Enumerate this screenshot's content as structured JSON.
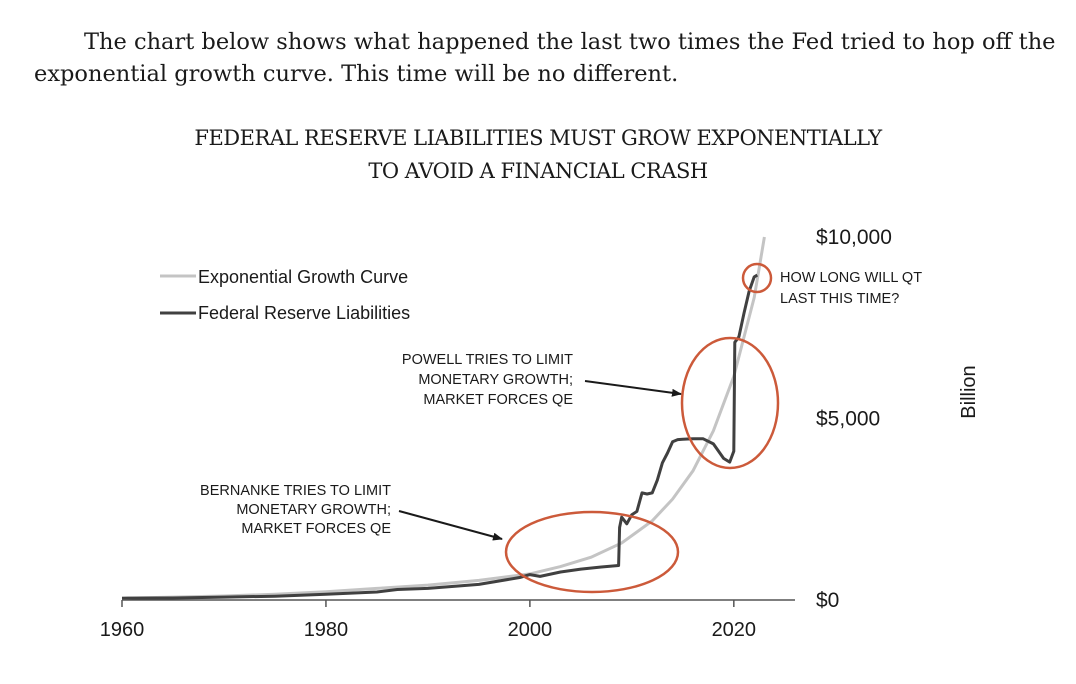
{
  "intro_text": "The chart below shows what happened the last two times the Fed tried to hop off the exponential growth curve. This time will be no different.",
  "chart_data": {
    "type": "line",
    "title_line1": "FEDERAL RESERVE LIABILITIES MUST GROW EXPONENTIALLY",
    "title_line2": "TO AVOID A FINANCIAL CRASH",
    "xlabel": "",
    "ylabel": "Billion",
    "xlim": [
      1960,
      2026
    ],
    "ylim": [
      0,
      10000
    ],
    "x_ticks": [
      1960,
      1980,
      2000,
      2020
    ],
    "x_tick_labels": [
      "1960",
      "1980",
      "2000",
      "2020"
    ],
    "y_ticks": [
      0,
      5000,
      10000
    ],
    "y_tick_labels": [
      "$0",
      "$5,000",
      "$10,000"
    ],
    "grid": false,
    "legend_position": "top-left",
    "colors": {
      "exponential": "#c4c4c4",
      "fed": "#404040",
      "annotation": "#cc5a3a",
      "arrow": "#1a1a1a"
    },
    "series": [
      {
        "name": "Exponential Growth Curve",
        "x": [
          1960,
          1965,
          1970,
          1975,
          1980,
          1985,
          1990,
          1995,
          2000,
          2003,
          2006,
          2009,
          2012,
          2014,
          2016,
          2018,
          2020,
          2022,
          2023
        ],
        "values": [
          50,
          80,
          110,
          160,
          230,
          320,
          410,
          540,
          720,
          920,
          1180,
          1570,
          2180,
          2780,
          3560,
          4660,
          6160,
          8330,
          10000
        ]
      },
      {
        "name": "Federal Reserve Liabilities",
        "x": [
          1960,
          1965,
          1970,
          1975,
          1980,
          1985,
          1987,
          1990,
          1995,
          1999,
          2000,
          2001,
          2003,
          2005,
          2007,
          2008.7,
          2008.8,
          2009,
          2009.5,
          2010,
          2010.5,
          2011,
          2011.5,
          2012,
          2012.5,
          2013,
          2013.5,
          2014,
          2014.5,
          2015,
          2016,
          2017,
          2018,
          2019,
          2019.6,
          2020,
          2020.1,
          2020.5,
          2021,
          2021.5,
          2022,
          2022.3
        ],
        "values": [
          50,
          55,
          80,
          105,
          160,
          220,
          290,
          320,
          430,
          620,
          700,
          650,
          770,
          850,
          910,
          950,
          2000,
          2280,
          2100,
          2350,
          2440,
          2950,
          2920,
          2950,
          3300,
          3780,
          4050,
          4360,
          4420,
          4430,
          4440,
          4440,
          4300,
          3900,
          3800,
          4100,
          7100,
          7250,
          7900,
          8500,
          8900,
          8950
        ]
      }
    ],
    "annotations": [
      {
        "label": "bernanke",
        "lines": [
          "BERNANKE TRIES TO LIMIT",
          "MONETARY GROWTH;",
          "MARKET FORCES QE"
        ]
      },
      {
        "label": "powell",
        "lines": [
          "POWELL TRIES TO LIMIT",
          "MONETARY GROWTH;",
          "MARKET FORCES QE"
        ]
      },
      {
        "label": "qt",
        "lines": [
          "HOW LONG WILL QT",
          "LAST THIS TIME?"
        ]
      }
    ]
  }
}
